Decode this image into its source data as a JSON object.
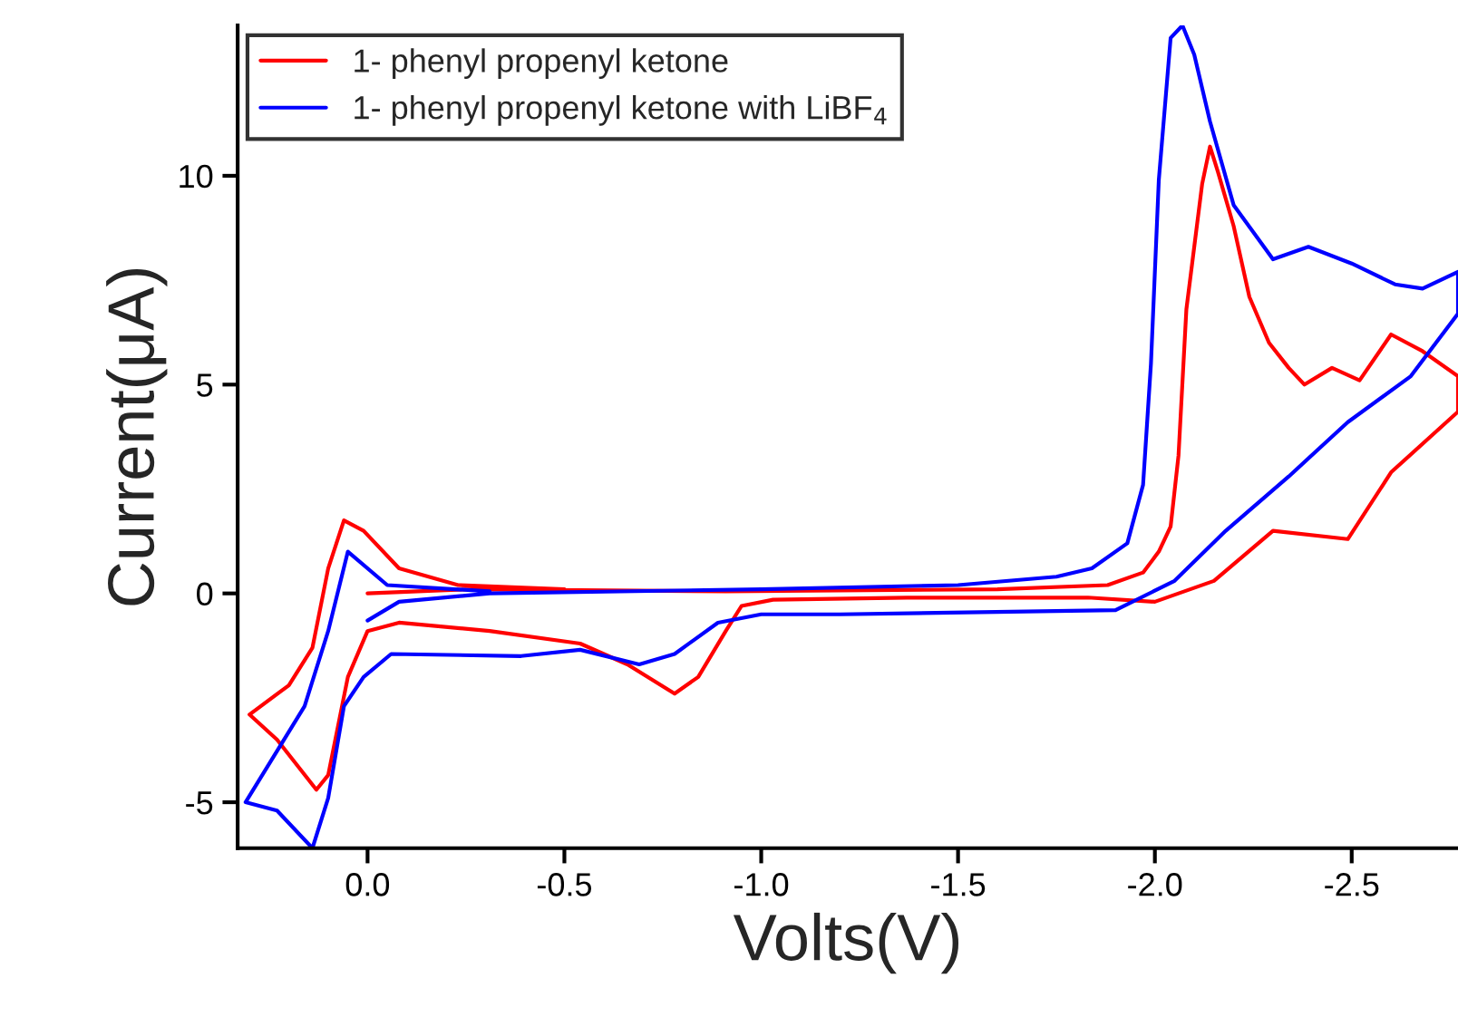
{
  "chart_data": {
    "type": "line",
    "xlabel": "Volts(V)",
    "ylabel": "Current(μA)",
    "xlim": [
      0.33,
      -2.77
    ],
    "ylim": [
      -6.1,
      13.6
    ],
    "xticks": [
      {
        "value": 0.0,
        "label": "0.0"
      },
      {
        "value": -0.5,
        "label": "-0.5"
      },
      {
        "value": -1.0,
        "label": "-1.0"
      },
      {
        "value": -1.5,
        "label": "-1.5"
      },
      {
        "value": -2.0,
        "label": "-2.0"
      },
      {
        "value": -2.5,
        "label": "-2.5"
      }
    ],
    "yticks": [
      {
        "value": -5,
        "label": "-5"
      },
      0,
      5,
      10
    ],
    "grid": false,
    "legend": "top left",
    "line_style": "solid",
    "marker": "none",
    "series": [
      {
        "name": "1- phenyl propenyl ketone",
        "color": "#ff0000",
        "x": [
          0.0,
          -0.26,
          -0.91,
          -1.6,
          -1.88,
          -1.97,
          -2.01,
          -2.04,
          -2.06,
          -2.08,
          -2.12,
          -2.14,
          -2.16,
          -2.2,
          -2.24,
          -2.29,
          -2.34,
          -2.38,
          -2.45,
          -2.52,
          -2.6,
          -2.68,
          -2.77,
          -2.77,
          -2.6,
          -2.49,
          -2.3,
          -2.15,
          -2.0,
          -1.83,
          -1.37,
          -1.03,
          -0.95,
          -0.91,
          -0.84,
          -0.78,
          -0.66,
          -0.54,
          -0.31,
          -0.08,
          0.0,
          0.05,
          0.1,
          0.13,
          0.23,
          0.3,
          0.2,
          0.14,
          0.1,
          0.06,
          0.01,
          -0.08,
          -0.23,
          -0.5
        ],
        "values": [
          0.0,
          0.1,
          0.05,
          0.1,
          0.2,
          0.5,
          1.0,
          1.6,
          3.3,
          6.8,
          9.8,
          10.7,
          10.1,
          8.8,
          7.1,
          6.0,
          5.4,
          5.0,
          5.4,
          5.1,
          6.2,
          5.8,
          5.2,
          4.35,
          2.9,
          1.3,
          1.5,
          0.3,
          -0.2,
          -0.1,
          -0.1,
          -0.15,
          -0.3,
          -0.9,
          -2.0,
          -2.4,
          -1.7,
          -1.2,
          -0.9,
          -0.7,
          -0.9,
          -2.0,
          -4.35,
          -4.7,
          -3.5,
          -2.9,
          -2.2,
          -1.3,
          0.6,
          1.75,
          1.5,
          0.6,
          0.2,
          0.1
        ]
      },
      {
        "name": "1- phenyl propenyl ketone with LiBF$_{4}$",
        "color": "#0000ff",
        "x": [
          0.0,
          -0.08,
          -0.31,
          -1.0,
          -1.5,
          -1.75,
          -1.84,
          -1.93,
          -1.97,
          -1.99,
          -2.01,
          -2.04,
          -2.07,
          -2.1,
          -2.14,
          -2.2,
          -2.3,
          -2.39,
          -2.5,
          -2.61,
          -2.68,
          -2.77,
          -2.77,
          -2.65,
          -2.49,
          -2.34,
          -2.18,
          -2.05,
          -1.9,
          -1.2,
          -1.0,
          -0.89,
          -0.78,
          -0.69,
          -0.54,
          -0.39,
          -0.06,
          0.01,
          0.06,
          0.1,
          0.14,
          0.23,
          0.31,
          0.16,
          0.1,
          0.05,
          -0.05,
          -0.31
        ],
        "values": [
          -0.65,
          -0.2,
          0.0,
          0.1,
          0.2,
          0.4,
          0.6,
          1.2,
          2.6,
          5.5,
          9.9,
          13.3,
          13.6,
          12.9,
          11.3,
          9.3,
          8.0,
          8.3,
          7.9,
          7.4,
          7.3,
          7.7,
          6.7,
          5.2,
          4.1,
          2.8,
          1.5,
          0.3,
          -0.4,
          -0.5,
          -0.5,
          -0.7,
          -1.45,
          -1.7,
          -1.35,
          -1.5,
          -1.45,
          -2.0,
          -2.7,
          -4.9,
          -6.1,
          -5.2,
          -5.0,
          -2.7,
          -0.9,
          1.0,
          0.2,
          0.05
        ]
      }
    ]
  }
}
